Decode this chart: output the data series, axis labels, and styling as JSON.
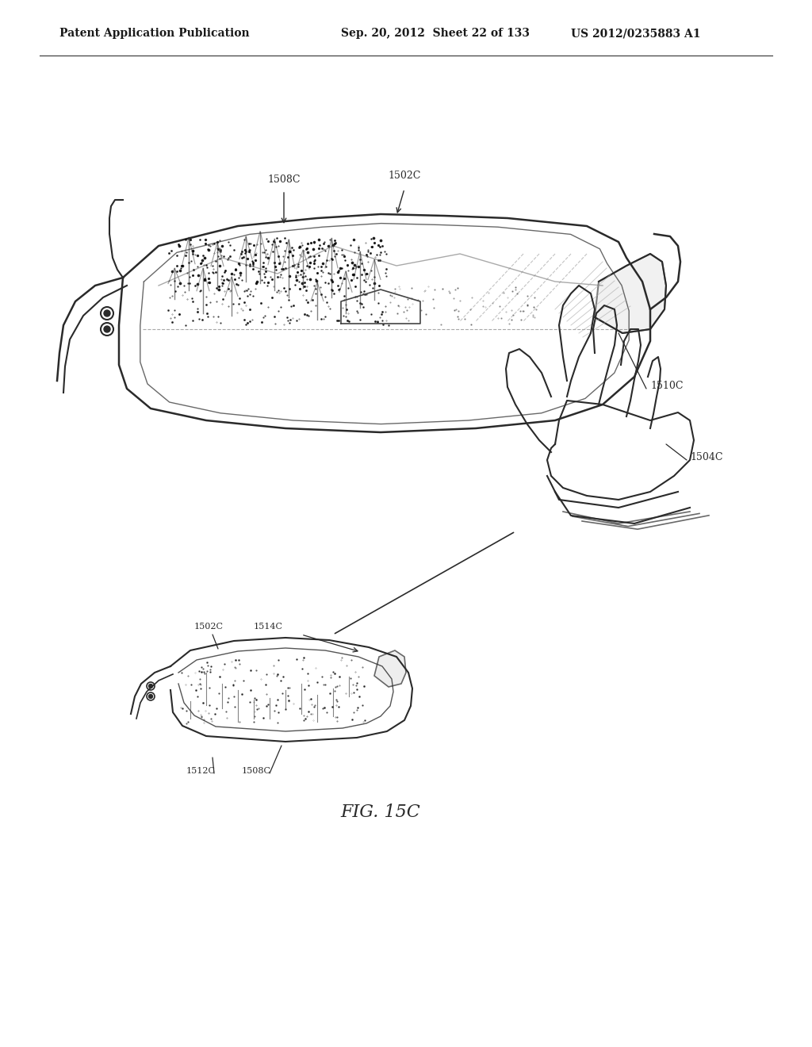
{
  "title": "",
  "background_color": "#ffffff",
  "header_left": "Patent Application Publication",
  "header_mid": "Sep. 20, 2012  Sheet 22 of 133",
  "header_right": "US 2012/0235883 A1",
  "figure_label": "FIG. 15C",
  "label_1508C_upper": "1508C",
  "label_1502C_upper": "1502C",
  "label_1510C": "1510C",
  "label_1504C": "1504C",
  "label_1502C_lower": "1502C",
  "label_1514C": "1514C",
  "label_1512C": "1512C",
  "label_1508C_lower": "1508C",
  "line_color": "#2a2a2a",
  "header_fontsize": 10,
  "label_fontsize": 9,
  "fig_label_fontsize": 16
}
